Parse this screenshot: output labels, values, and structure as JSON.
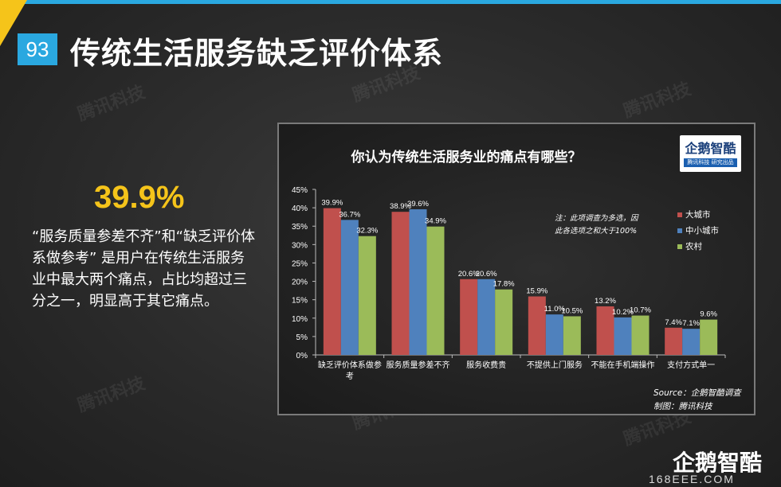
{
  "slide": {
    "page_number": "93",
    "title": "传统生活服务缺乏评价体系",
    "highlight": "39.9%",
    "description": "“服务质量参差不齐”和“缺乏评价体系做参考” 是用户在传统生活服务业中最大两个痛点，占比均超过三分之一，明显高于其它痛点。",
    "watermark": "腾讯科技",
    "brand": "企鹅智酷",
    "brand_url": "168EEE.COM"
  },
  "logo": {
    "text": "企鹅智酷",
    "sub": "腾讯科技 研究出品"
  },
  "chart_data": {
    "type": "bar",
    "title": "你认为传统生活服务业的痛点有哪些？",
    "categories": [
      "缺乏评价体系做参考",
      "服务质量参差不齐",
      "服务收费贵",
      "不提供上门服务",
      "不能在手机端操作",
      "支付方式单一"
    ],
    "category_lines": [
      [
        "缺乏评价体系做参",
        "考"
      ],
      [
        "服务质量参差不齐"
      ],
      [
        "服务收费贵"
      ],
      [
        "不提供上门服务"
      ],
      [
        "不能在手机端操作"
      ],
      [
        "支付方式单一"
      ]
    ],
    "series": [
      {
        "name": "大城市",
        "color": "#c0504d",
        "values": [
          39.9,
          38.9,
          20.6,
          15.9,
          13.2,
          7.4
        ]
      },
      {
        "name": "中小城市",
        "color": "#4f81bd",
        "values": [
          36.7,
          39.6,
          20.6,
          11.0,
          10.2,
          7.1
        ]
      },
      {
        "name": "农村",
        "color": "#9bbb59",
        "values": [
          32.3,
          34.9,
          17.8,
          10.5,
          10.7,
          9.6
        ]
      }
    ],
    "ylim": [
      0,
      45
    ],
    "yticks": [
      "0%",
      "5%",
      "10%",
      "15%",
      "20%",
      "25%",
      "30%",
      "35%",
      "40%",
      "45%"
    ],
    "grid": false,
    "legend_position": "right",
    "note_lines": [
      "注：此项调查为多选，因",
      "此各选项之和大于100%"
    ],
    "source_lines": [
      "Source：企鹅智酷调查",
      "制图：腾讯科技"
    ]
  }
}
